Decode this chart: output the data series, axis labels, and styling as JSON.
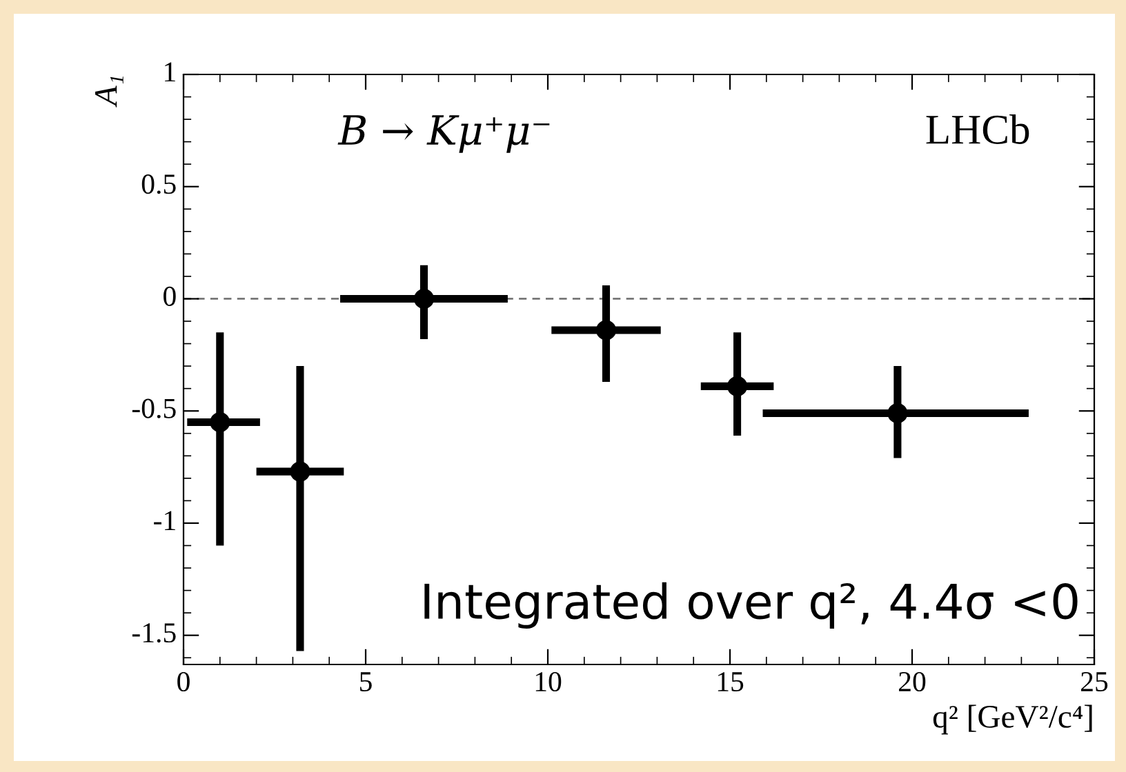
{
  "chart_data": {
    "type": "scatter",
    "xlabel": "q² [GeV²/c⁴]",
    "ylabel": "A₁",
    "x": [
      1.0,
      3.2,
      6.6,
      11.6,
      15.2,
      19.6
    ],
    "values": [
      -0.55,
      -0.77,
      0.0,
      -0.14,
      -0.39,
      -0.51
    ],
    "errors": [
      [
        -1.1,
        -0.15
      ],
      [
        -1.57,
        -0.3
      ],
      [
        -0.18,
        0.15
      ],
      [
        -0.37,
        0.06
      ],
      [
        -0.61,
        -0.15
      ],
      [
        -0.71,
        -0.3
      ]
    ],
    "xerrors": [
      [
        0.1,
        2.1
      ],
      [
        2.0,
        4.4
      ],
      [
        4.3,
        8.9
      ],
      [
        10.1,
        13.1
      ],
      [
        14.2,
        16.2
      ],
      [
        15.9,
        23.2
      ]
    ],
    "color": "#000000",
    "marker": "circle",
    "xlim": [
      0,
      25
    ],
    "xticks": [
      0,
      5,
      10,
      15,
      20,
      25
    ],
    "ylim": [
      -1.63,
      1
    ],
    "yticks": [
      -1.5,
      -1,
      -0.5,
      0,
      0.5,
      1
    ],
    "grid": false,
    "legend": false,
    "ref_lines": [
      {
        "axis": "y",
        "value": 0,
        "color": "#777777",
        "line_style": "dashed"
      }
    ],
    "annotations": [
      "B → Kμ⁺μ⁻",
      "LHCb",
      "Integrated over q², 4.4σ <0"
    ]
  }
}
